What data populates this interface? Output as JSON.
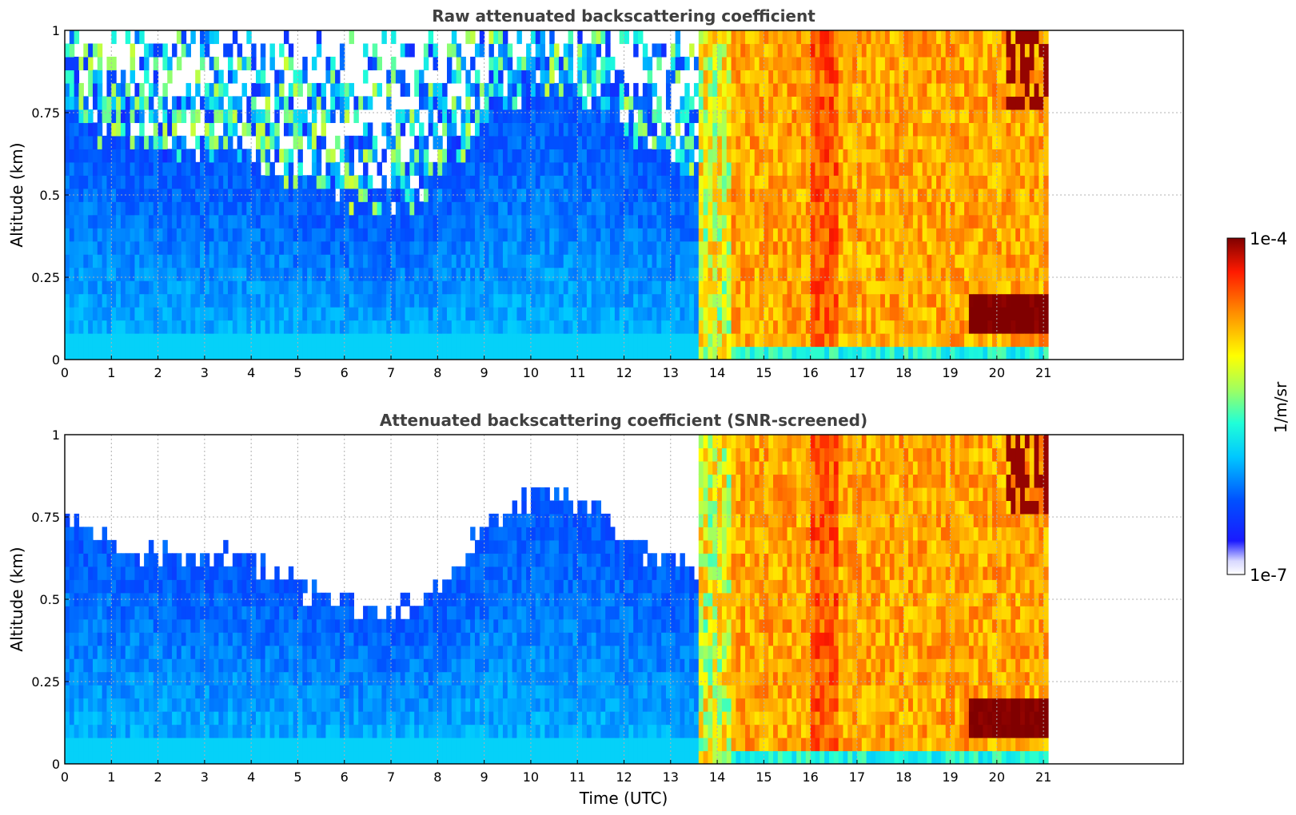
{
  "chart_data": {
    "type": "heatmap",
    "x_label": "Time (UTC)",
    "x_ticks": [
      "0",
      "1",
      "2",
      "3",
      "4",
      "5",
      "6",
      "7",
      "8",
      "9",
      "10",
      "11",
      "12",
      "13",
      "14",
      "15",
      "16",
      "17",
      "18",
      "19",
      "20",
      "21"
    ],
    "xlim": [
      0,
      24
    ],
    "y_ticks": [
      "0",
      "0.25",
      "0.5",
      "0.75",
      "1"
    ],
    "ylim": [
      0,
      1
    ],
    "grid": true,
    "colorbar": {
      "label": "1/m/sr",
      "min_label": "1e-7",
      "max_label": "1e-4",
      "scale": "log",
      "colormap": "jet",
      "min_value": 1e-07,
      "max_value": 0.0001
    },
    "panels": [
      {
        "title": "Raw attenuated backscattering coefficient",
        "ylabel": "Altitude (km)",
        "screened": false
      },
      {
        "title": "Attenuated backscattering coefficient (SNR-screened)",
        "ylabel": "Altitude (km)",
        "screened": true
      }
    ],
    "data_end_hour": 21.1,
    "periods": [
      {
        "from": 0.0,
        "to": 13.6,
        "description_value_log10": -6.3,
        "aerosol_layer_top_km": [
          0.72,
          0.65,
          0.6,
          0.62,
          0.55,
          0.48,
          0.44,
          0.5,
          0.72,
          0.82,
          0.75,
          0.62,
          0.55
        ]
      },
      {
        "from": 13.6,
        "to": 14.3,
        "description_value_log10": -5.2
      },
      {
        "from": 14.3,
        "to": 21.1,
        "description_value_log10": -4.6,
        "low_cloud_top_km": 0.2,
        "high_cloud_km": [
          0.75,
          1.0
        ]
      }
    ]
  }
}
